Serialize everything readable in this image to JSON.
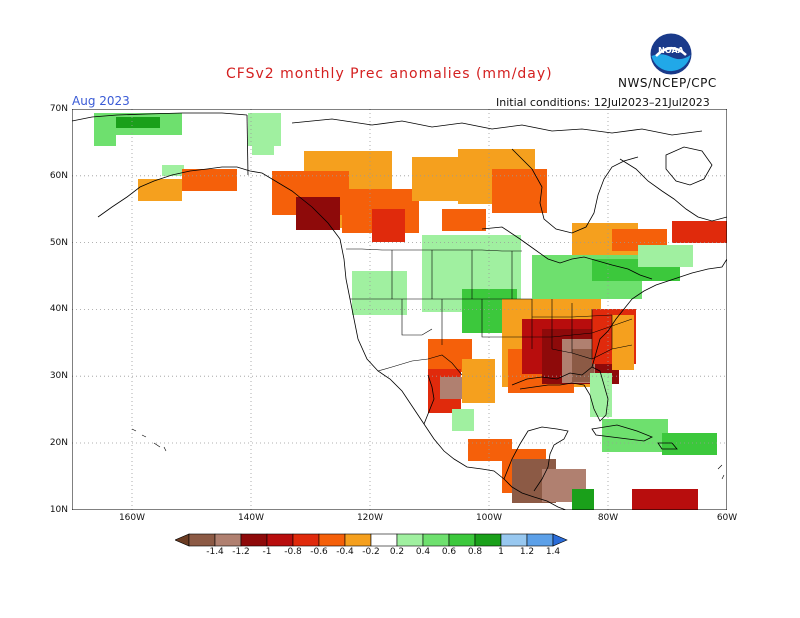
{
  "title": "CFSv2 monthly Prec anomalies (mm/day)",
  "agency": "NWS/NCEP/CPC",
  "logo_text": "NOAA",
  "target_month": "Aug 2023",
  "initial_conditions": "Initial conditions: 12Jul2023–21Jul2023",
  "lat_labels": [
    "70N",
    "60N",
    "50N",
    "40N",
    "30N",
    "20N",
    "10N"
  ],
  "lon_labels": [
    "160W",
    "140W",
    "120W",
    "100W",
    "80W",
    "60W"
  ],
  "legend": {
    "ticks": [
      "-1.4",
      "-1.2",
      "-1",
      "-0.8",
      "-0.6",
      "-0.4",
      "-0.2",
      "0.2",
      "0.4",
      "0.6",
      "0.8",
      "1",
      "1.2",
      "1.4"
    ],
    "colors": [
      "#6a3b22",
      "#8c5a45",
      "#b08070",
      "#8e0a0a",
      "#b80d0d",
      "#e02a0c",
      "#f5600a",
      "#f5a01e",
      "#ffffff",
      "#a0f0a0",
      "#6ee06e",
      "#3cc83c",
      "#1aa01a",
      "#98c8f0",
      "#5ca0e8",
      "#2a6cd8"
    ]
  }
}
